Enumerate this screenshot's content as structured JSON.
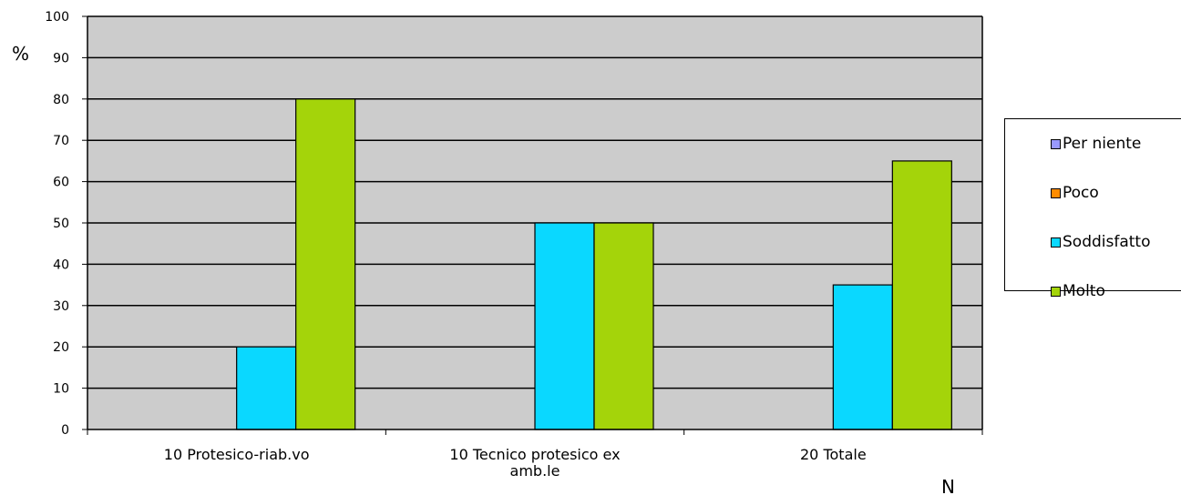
{
  "chart_data": {
    "type": "bar",
    "title": "",
    "ylabel": "%",
    "xlabel": "N",
    "ylim": [
      0,
      100
    ],
    "yticks": [
      0,
      10,
      20,
      30,
      40,
      50,
      60,
      70,
      80,
      90,
      100
    ],
    "categories": [
      [
        "10 Protesico-riab.vo"
      ],
      [
        "10 Tecnico protesico ex",
        "amb.le"
      ],
      [
        "20 Totale"
      ]
    ],
    "series": [
      {
        "name": "Per niente",
        "color": "#9999ff",
        "values": [
          0,
          0,
          0
        ]
      },
      {
        "name": "Poco",
        "color": "#ff8c00",
        "values": [
          0,
          0,
          0
        ]
      },
      {
        "name": "Soddisfatto",
        "color": "#0ad8ff",
        "values": [
          20,
          50,
          35
        ]
      },
      {
        "name": "Molto",
        "color": "#a4d40a",
        "values": [
          80,
          50,
          65
        ]
      }
    ],
    "grid": true,
    "plot_background": "#cccccc",
    "legend_position": "right"
  }
}
